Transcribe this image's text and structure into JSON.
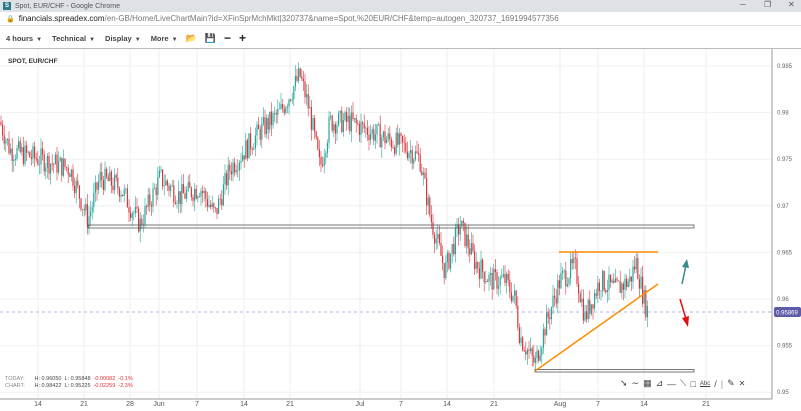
{
  "browser": {
    "title": "Spot, EUR/CHF - Google Chrome",
    "favicon": "S",
    "url_host": "financials.spreadex.com",
    "url_path": "/en-GB/Home/LiveChartMain?id=XFinSprMchMkt|320737&name=Spot,%20EUR/CHF&temp=autogen_320737_1691994577356"
  },
  "toolbar": {
    "interval": "4 hours",
    "technical": "Technical",
    "display": "Display",
    "more": "More",
    "icons": [
      "folder-open-icon",
      "save-icon",
      "minus-icon",
      "plus-icon"
    ]
  },
  "chart": {
    "symbol": "SPOT, EUR/CHF",
    "current_price": "0.95869",
    "up_color": "#26a69a",
    "down_color": "#d9363e",
    "accent_orange": "#ff8c00",
    "y_ticks": [
      "0.985",
      "0.98",
      "0.975",
      "0.97",
      "0.965",
      "0.96",
      "0.955",
      "0.95"
    ],
    "x_ticks": [
      "14",
      "21",
      "28",
      "Jun",
      "7",
      "14",
      "21",
      "Jul",
      "7",
      "14",
      "21",
      "Aug",
      "7",
      "14",
      "21"
    ]
  },
  "stats": {
    "today": {
      "label": "TODAY:",
      "high": "H: 0.96050",
      "low": "L: 0.95848",
      "change": "-0.00082",
      "pct": "-0.1%"
    },
    "chart": {
      "label": "CHART:",
      "high": "H: 0.98422",
      "low": "L: 0.95225",
      "change": "-0.02259",
      "pct": "-2.3%"
    }
  },
  "drawing_tools": [
    "arrow-icon",
    "curve-icon",
    "fib-grid-icon",
    "fan-icon",
    "horizontal-line-icon",
    "trend-line-icon",
    "rectangle-icon",
    "text-icon",
    "line-icon",
    "pencil-icon",
    "close-icon"
  ]
}
